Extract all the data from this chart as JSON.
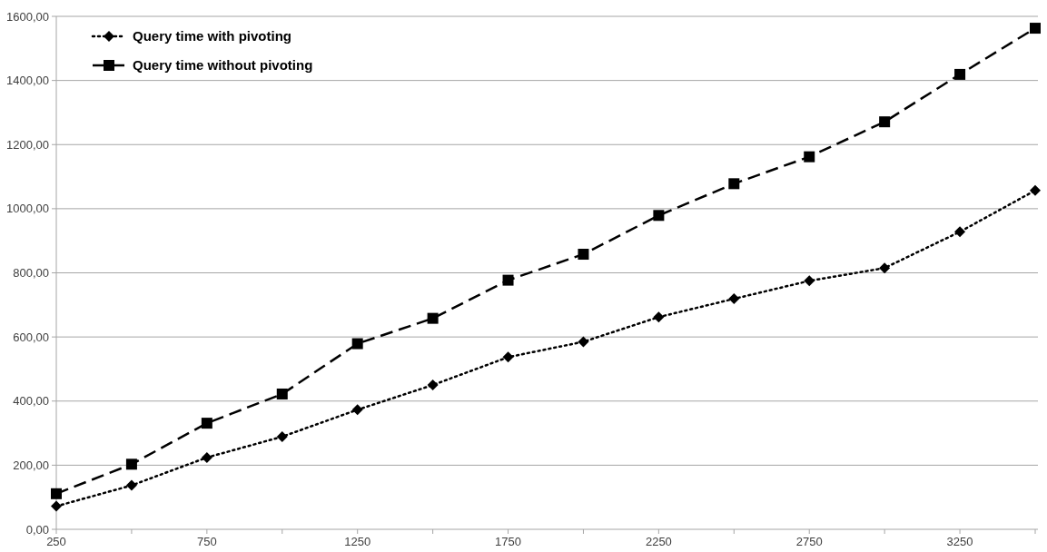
{
  "chart_data": {
    "type": "line",
    "categories": [
      "250",
      null,
      "750",
      null,
      "1250",
      null,
      "1750",
      null,
      "2250",
      null,
      "2750",
      null,
      "3250",
      null
    ],
    "series": [
      {
        "name": "Query time with pivoting",
        "color": "#000000",
        "marker": "diamond",
        "line_style": "dotted",
        "values": [
          72,
          137,
          224,
          289,
          373,
          450,
          537,
          585,
          662,
          719,
          775,
          815,
          928,
          1057
        ]
      },
      {
        "name": "Query time without pivoting",
        "color": "#000000",
        "marker": "square",
        "line_style": "dashed",
        "values": [
          111,
          203,
          331,
          422,
          579,
          658,
          777,
          858,
          979,
          1078,
          1162,
          1271,
          1419,
          1563
        ]
      }
    ],
    "ylim": [
      0,
      1600
    ],
    "yticks": [
      {
        "value": 0,
        "label": "0,00"
      },
      {
        "value": 200,
        "label": "200,00"
      },
      {
        "value": 400,
        "label": "400,00"
      },
      {
        "value": 600,
        "label": "600,00"
      },
      {
        "value": 800,
        "label": "800,00"
      },
      {
        "value": 1000,
        "label": "1000,00"
      },
      {
        "value": 1200,
        "label": "1200,00"
      },
      {
        "value": 1400,
        "label": "1400,00"
      },
      {
        "value": 1600,
        "label": "1600,00"
      }
    ],
    "grid": "y",
    "legend": "top left"
  }
}
